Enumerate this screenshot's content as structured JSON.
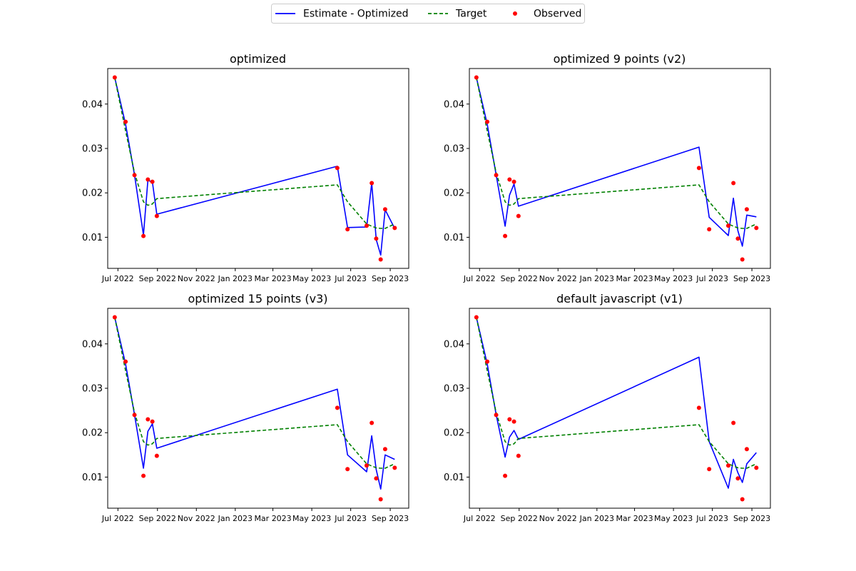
{
  "colors": {
    "estimate": "#0000ff",
    "target": "#008000",
    "observed": "#ff0000",
    "axes": "#000000",
    "legend_border": "#cccccc"
  },
  "legend": {
    "placement": "top-center",
    "entries": [
      {
        "label": "Estimate - Optimized",
        "style": "solid-line",
        "color": "#0000ff"
      },
      {
        "label": "Target",
        "style": "dashed-line",
        "color": "#008000"
      },
      {
        "label": "Observed",
        "style": "dot",
        "color": "#ff0000"
      }
    ]
  },
  "chart_data": [
    {
      "type": "line",
      "title": "optimized",
      "xlabel": "",
      "ylabel": "",
      "x_scale": "date",
      "xlim": [
        "2022-06-15",
        "2023-09-30"
      ],
      "ylim": [
        0.003,
        0.048
      ],
      "grid": false,
      "x_ticks": [
        "2022-07-01",
        "2022-09-01",
        "2022-11-01",
        "2023-01-01",
        "2023-03-01",
        "2023-05-01",
        "2023-07-01",
        "2023-09-01"
      ],
      "x_tick_labels": [
        "Jul 2022",
        "Sep 2022",
        "Nov 2022",
        "Jan 2023",
        "Mar 2023",
        "May 2023",
        "Jul 2023",
        "Sep 2023"
      ],
      "y_ticks": [
        0.01,
        0.02,
        0.03,
        0.04
      ],
      "y_tick_labels": [
        "0.01",
        "0.02",
        "0.03",
        "0.04"
      ],
      "series": [
        {
          "style": "solid-line",
          "color": "#0000ff",
          "points": [
            [
              "2022-06-26",
              0.046
            ],
            [
              "2022-07-13",
              0.0355
            ],
            [
              "2022-07-27",
              0.024
            ],
            [
              "2022-08-10",
              0.0105
            ],
            [
              "2022-08-17",
              0.0228
            ],
            [
              "2022-08-24",
              0.0225
            ],
            [
              "2022-08-31",
              0.0152
            ],
            [
              "2023-06-10",
              0.026
            ],
            [
              "2023-06-26",
              0.0122
            ],
            [
              "2023-07-26",
              0.0123
            ],
            [
              "2023-08-03",
              0.0222
            ],
            [
              "2023-08-10",
              0.0095
            ],
            [
              "2023-08-17",
              0.006
            ],
            [
              "2023-08-24",
              0.0162
            ],
            [
              "2023-09-08",
              0.012
            ]
          ]
        },
        {
          "style": "dashed-line",
          "color": "#008000",
          "points": [
            [
              "2022-06-26",
              0.046
            ],
            [
              "2022-07-13",
              0.034
            ],
            [
              "2022-07-27",
              0.0245
            ],
            [
              "2022-08-10",
              0.018
            ],
            [
              "2022-08-17",
              0.0172
            ],
            [
              "2022-08-24",
              0.0175
            ],
            [
              "2022-08-31",
              0.0187
            ],
            [
              "2023-06-10",
              0.0218
            ],
            [
              "2023-06-26",
              0.018
            ],
            [
              "2023-07-26",
              0.013
            ],
            [
              "2023-08-03",
              0.0125
            ],
            [
              "2023-08-10",
              0.0121
            ],
            [
              "2023-08-17",
              0.012
            ],
            [
              "2023-08-24",
              0.012
            ],
            [
              "2023-09-08",
              0.013
            ]
          ]
        },
        {
          "style": "dot",
          "color": "#ff0000",
          "points": [
            [
              "2022-06-26",
              0.046
            ],
            [
              "2022-07-13",
              0.036
            ],
            [
              "2022-07-27",
              0.024
            ],
            [
              "2022-08-10",
              0.0103
            ],
            [
              "2022-08-17",
              0.023
            ],
            [
              "2022-08-24",
              0.0225
            ],
            [
              "2022-08-31",
              0.0148
            ],
            [
              "2023-06-10",
              0.0256
            ],
            [
              "2023-06-26",
              0.0118
            ],
            [
              "2023-07-26",
              0.0126
            ],
            [
              "2023-08-03",
              0.0222
            ],
            [
              "2023-08-10",
              0.0097
            ],
            [
              "2023-08-17",
              0.005
            ],
            [
              "2023-08-24",
              0.0163
            ],
            [
              "2023-09-08",
              0.0121
            ]
          ]
        }
      ]
    },
    {
      "type": "line",
      "title": "optimized 9 points (v2)",
      "xlabel": "",
      "ylabel": "",
      "x_scale": "date",
      "xlim": [
        "2022-06-15",
        "2023-09-30"
      ],
      "ylim": [
        0.003,
        0.048
      ],
      "grid": false,
      "x_ticks": [
        "2022-07-01",
        "2022-09-01",
        "2022-11-01",
        "2023-01-01",
        "2023-03-01",
        "2023-05-01",
        "2023-07-01",
        "2023-09-01"
      ],
      "x_tick_labels": [
        "Jul 2022",
        "Sep 2022",
        "Nov 2022",
        "Jan 2023",
        "Mar 2023",
        "May 2023",
        "Jul 2023",
        "Sep 2023"
      ],
      "y_ticks": [
        0.01,
        0.02,
        0.03,
        0.04
      ],
      "y_tick_labels": [
        "0.01",
        "0.02",
        "0.03",
        "0.04"
      ],
      "series": [
        {
          "style": "solid-line",
          "color": "#0000ff",
          "points": [
            [
              "2022-06-26",
              0.046
            ],
            [
              "2022-07-13",
              0.0355
            ],
            [
              "2022-07-27",
              0.024
            ],
            [
              "2022-08-10",
              0.0125
            ],
            [
              "2022-08-17",
              0.0195
            ],
            [
              "2022-08-24",
              0.022
            ],
            [
              "2022-08-31",
              0.017
            ],
            [
              "2023-06-10",
              0.0303
            ],
            [
              "2023-06-26",
              0.0145
            ],
            [
              "2023-07-26",
              0.0104
            ],
            [
              "2023-08-03",
              0.0188
            ],
            [
              "2023-08-10",
              0.0115
            ],
            [
              "2023-08-17",
              0.008
            ],
            [
              "2023-08-24",
              0.015
            ],
            [
              "2023-09-08",
              0.0146
            ]
          ]
        },
        {
          "style": "dashed-line",
          "color": "#008000",
          "points": [
            [
              "2022-06-26",
              0.046
            ],
            [
              "2022-07-13",
              0.034
            ],
            [
              "2022-07-27",
              0.0245
            ],
            [
              "2022-08-10",
              0.018
            ],
            [
              "2022-08-17",
              0.0172
            ],
            [
              "2022-08-24",
              0.0175
            ],
            [
              "2022-08-31",
              0.0187
            ],
            [
              "2023-06-10",
              0.0218
            ],
            [
              "2023-06-26",
              0.018
            ],
            [
              "2023-07-26",
              0.013
            ],
            [
              "2023-08-03",
              0.0125
            ],
            [
              "2023-08-10",
              0.0121
            ],
            [
              "2023-08-17",
              0.012
            ],
            [
              "2023-08-24",
              0.012
            ],
            [
              "2023-09-08",
              0.013
            ]
          ]
        },
        {
          "style": "dot",
          "color": "#ff0000",
          "points": [
            [
              "2022-06-26",
              0.046
            ],
            [
              "2022-07-13",
              0.036
            ],
            [
              "2022-07-27",
              0.024
            ],
            [
              "2022-08-10",
              0.0103
            ],
            [
              "2022-08-17",
              0.023
            ],
            [
              "2022-08-24",
              0.0225
            ],
            [
              "2022-08-31",
              0.0148
            ],
            [
              "2023-06-10",
              0.0256
            ],
            [
              "2023-06-26",
              0.0118
            ],
            [
              "2023-07-26",
              0.0126
            ],
            [
              "2023-08-03",
              0.0222
            ],
            [
              "2023-08-10",
              0.0097
            ],
            [
              "2023-08-17",
              0.005
            ],
            [
              "2023-08-24",
              0.0163
            ],
            [
              "2023-09-08",
              0.0121
            ]
          ]
        }
      ]
    },
    {
      "type": "line",
      "title": "optimized 15 points (v3)",
      "xlabel": "",
      "ylabel": "",
      "x_scale": "date",
      "xlim": [
        "2022-06-15",
        "2023-09-30"
      ],
      "ylim": [
        0.003,
        0.048
      ],
      "grid": false,
      "x_ticks": [
        "2022-07-01",
        "2022-09-01",
        "2022-11-01",
        "2023-01-01",
        "2023-03-01",
        "2023-05-01",
        "2023-07-01",
        "2023-09-01"
      ],
      "x_tick_labels": [
        "Jul 2022",
        "Sep 2022",
        "Nov 2022",
        "Jan 2023",
        "Mar 2023",
        "May 2023",
        "Jul 2023",
        "Sep 2023"
      ],
      "y_ticks": [
        0.01,
        0.02,
        0.03,
        0.04
      ],
      "y_tick_labels": [
        "0.01",
        "0.02",
        "0.03",
        "0.04"
      ],
      "series": [
        {
          "style": "solid-line",
          "color": "#0000ff",
          "points": [
            [
              "2022-06-26",
              0.046
            ],
            [
              "2022-07-13",
              0.0355
            ],
            [
              "2022-07-27",
              0.024
            ],
            [
              "2022-08-10",
              0.012
            ],
            [
              "2022-08-17",
              0.0203
            ],
            [
              "2022-08-24",
              0.022
            ],
            [
              "2022-08-31",
              0.0165
            ],
            [
              "2023-06-10",
              0.0298
            ],
            [
              "2023-06-26",
              0.015
            ],
            [
              "2023-07-26",
              0.0112
            ],
            [
              "2023-08-03",
              0.0193
            ],
            [
              "2023-08-10",
              0.0117
            ],
            [
              "2023-08-17",
              0.0073
            ],
            [
              "2023-08-24",
              0.015
            ],
            [
              "2023-09-08",
              0.014
            ]
          ]
        },
        {
          "style": "dashed-line",
          "color": "#008000",
          "points": [
            [
              "2022-06-26",
              0.046
            ],
            [
              "2022-07-13",
              0.034
            ],
            [
              "2022-07-27",
              0.0245
            ],
            [
              "2022-08-10",
              0.018
            ],
            [
              "2022-08-17",
              0.0172
            ],
            [
              "2022-08-24",
              0.0175
            ],
            [
              "2022-08-31",
              0.0187
            ],
            [
              "2023-06-10",
              0.0218
            ],
            [
              "2023-06-26",
              0.018
            ],
            [
              "2023-07-26",
              0.013
            ],
            [
              "2023-08-03",
              0.0125
            ],
            [
              "2023-08-10",
              0.0121
            ],
            [
              "2023-08-17",
              0.012
            ],
            [
              "2023-08-24",
              0.012
            ],
            [
              "2023-09-08",
              0.013
            ]
          ]
        },
        {
          "style": "dot",
          "color": "#ff0000",
          "points": [
            [
              "2022-06-26",
              0.046
            ],
            [
              "2022-07-13",
              0.036
            ],
            [
              "2022-07-27",
              0.024
            ],
            [
              "2022-08-10",
              0.0103
            ],
            [
              "2022-08-17",
              0.023
            ],
            [
              "2022-08-24",
              0.0225
            ],
            [
              "2022-08-31",
              0.0148
            ],
            [
              "2023-06-10",
              0.0256
            ],
            [
              "2023-06-26",
              0.0118
            ],
            [
              "2023-07-26",
              0.0126
            ],
            [
              "2023-08-03",
              0.0222
            ],
            [
              "2023-08-10",
              0.0097
            ],
            [
              "2023-08-17",
              0.005
            ],
            [
              "2023-08-24",
              0.0163
            ],
            [
              "2023-09-08",
              0.0121
            ]
          ]
        }
      ]
    },
    {
      "type": "line",
      "title": "default javascript (v1)",
      "xlabel": "",
      "ylabel": "",
      "x_scale": "date",
      "xlim": [
        "2022-06-15",
        "2023-09-30"
      ],
      "ylim": [
        0.003,
        0.048
      ],
      "grid": false,
      "x_ticks": [
        "2022-07-01",
        "2022-09-01",
        "2022-11-01",
        "2023-01-01",
        "2023-03-01",
        "2023-05-01",
        "2023-07-01",
        "2023-09-01"
      ],
      "x_tick_labels": [
        "Jul 2022",
        "Sep 2022",
        "Nov 2022",
        "Jan 2023",
        "Mar 2023",
        "May 2023",
        "Jul 2023",
        "Sep 2023"
      ],
      "y_ticks": [
        0.01,
        0.02,
        0.03,
        0.04
      ],
      "y_tick_labels": [
        "0.01",
        "0.02",
        "0.03",
        "0.04"
      ],
      "series": [
        {
          "style": "solid-line",
          "color": "#0000ff",
          "points": [
            [
              "2022-06-26",
              0.046
            ],
            [
              "2022-07-13",
              0.0355
            ],
            [
              "2022-07-27",
              0.024
            ],
            [
              "2022-08-10",
              0.0145
            ],
            [
              "2022-08-17",
              0.019
            ],
            [
              "2022-08-24",
              0.0205
            ],
            [
              "2022-08-31",
              0.0185
            ],
            [
              "2023-06-10",
              0.037
            ],
            [
              "2023-06-26",
              0.018
            ],
            [
              "2023-07-26",
              0.0075
            ],
            [
              "2023-08-03",
              0.014
            ],
            [
              "2023-08-10",
              0.011
            ],
            [
              "2023-08-17",
              0.0088
            ],
            [
              "2023-08-24",
              0.013
            ],
            [
              "2023-09-08",
              0.0155
            ]
          ]
        },
        {
          "style": "dashed-line",
          "color": "#008000",
          "points": [
            [
              "2022-06-26",
              0.046
            ],
            [
              "2022-07-13",
              0.034
            ],
            [
              "2022-07-27",
              0.0245
            ],
            [
              "2022-08-10",
              0.018
            ],
            [
              "2022-08-17",
              0.0172
            ],
            [
              "2022-08-24",
              0.0175
            ],
            [
              "2022-08-31",
              0.0187
            ],
            [
              "2023-06-10",
              0.0218
            ],
            [
              "2023-06-26",
              0.018
            ],
            [
              "2023-07-26",
              0.013
            ],
            [
              "2023-08-03",
              0.0125
            ],
            [
              "2023-08-10",
              0.0121
            ],
            [
              "2023-08-17",
              0.012
            ],
            [
              "2023-08-24",
              0.012
            ],
            [
              "2023-09-08",
              0.013
            ]
          ]
        },
        {
          "style": "dot",
          "color": "#ff0000",
          "points": [
            [
              "2022-06-26",
              0.046
            ],
            [
              "2022-07-13",
              0.036
            ],
            [
              "2022-07-27",
              0.024
            ],
            [
              "2022-08-10",
              0.0103
            ],
            [
              "2022-08-17",
              0.023
            ],
            [
              "2022-08-24",
              0.0225
            ],
            [
              "2022-08-31",
              0.0148
            ],
            [
              "2023-06-10",
              0.0256
            ],
            [
              "2023-06-26",
              0.0118
            ],
            [
              "2023-07-26",
              0.0126
            ],
            [
              "2023-08-03",
              0.0222
            ],
            [
              "2023-08-10",
              0.0097
            ],
            [
              "2023-08-17",
              0.005
            ],
            [
              "2023-08-24",
              0.0163
            ],
            [
              "2023-09-08",
              0.0121
            ]
          ]
        }
      ]
    }
  ]
}
